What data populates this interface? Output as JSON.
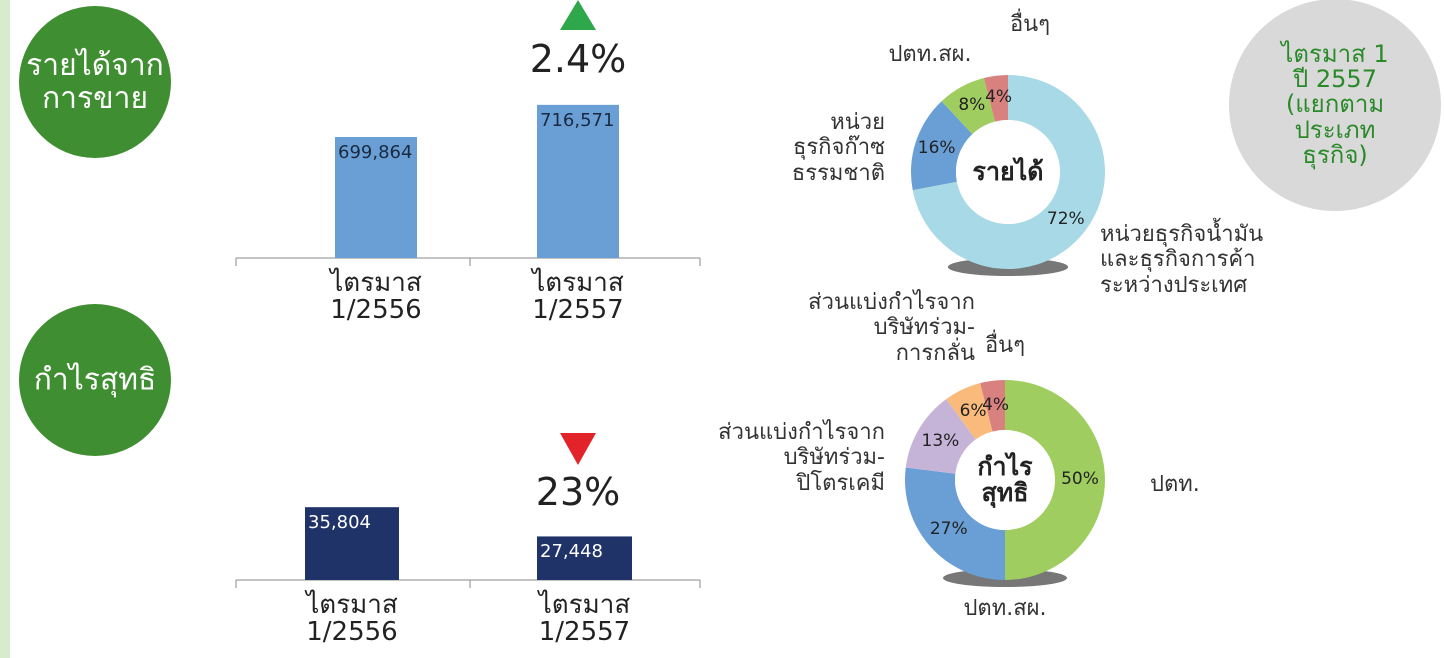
{
  "chart_data": [
    {
      "type": "bar",
      "title": "รายได้จาก\nการขาย",
      "categories": [
        "ไตรมาส\n1/2556",
        "ไตรมาส\n1/2557"
      ],
      "values": [
        699864,
        716571
      ],
      "value_labels": [
        "699,864",
        "716,571"
      ],
      "color": "#6a9fd6",
      "ylim": [
        637000,
        730000
      ],
      "change": {
        "value": 2.4,
        "label": "2.4%",
        "direction": "up"
      }
    },
    {
      "type": "bar",
      "title": "กำไรสุทธิ",
      "categories": [
        "ไตรมาส\n1/2556",
        "ไตรมาส\n1/2557"
      ],
      "values": [
        35804,
        27448
      ],
      "value_labels": [
        "35,804",
        "27,448"
      ],
      "color": "#1f3368",
      "ylim": [
        15000,
        45000
      ],
      "change": {
        "value": 23,
        "label": "23%",
        "direction": "down"
      }
    },
    {
      "type": "donut",
      "title": "รายได้",
      "categories": [
        "หน่วยธุรกิจน้ำมัน\nและธุรกิจการค้า\nระหว่างประเทศ",
        "หน่วย\nธุรกิจก๊าซ\nธรรมชาติ",
        "ปตท.สผ.",
        "อื่นๆ"
      ],
      "values": [
        72,
        16,
        8,
        4
      ],
      "value_labels": [
        "72%",
        "16%",
        "8%",
        "4%"
      ],
      "colors": [
        "#a8d9e7",
        "#6a9fd6",
        "#9fcd60",
        "#d9817f"
      ]
    },
    {
      "type": "donut",
      "title": "กำไร\nสุทธิ",
      "categories": [
        "ปตท.",
        "ปตท.สผ.",
        "ส่วนแบ่งกำไรจาก\nบริษัทร่วม-\nปิโตรเคมี",
        "ส่วนแบ่งกำไรจาก\nบริษัทร่วม-\nการกลั่น",
        "อื่นๆ"
      ],
      "values": [
        50,
        27,
        13,
        6,
        4
      ],
      "value_labels": [
        "50%",
        "27%",
        "13%",
        "6%",
        "4%"
      ],
      "colors": [
        "#9fcd60",
        "#6a9fd6",
        "#c6b4d8",
        "#f9ba7b",
        "#d9817f"
      ]
    }
  ],
  "note": "ไตรมาส 1\nปี 2557\n(แยกตามประเภท\nธุรกิจ)"
}
